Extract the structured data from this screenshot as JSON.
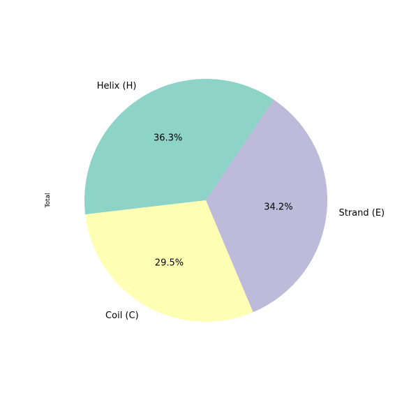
{
  "chart_data": {
    "type": "pie",
    "ylabel": "Total",
    "slices": [
      {
        "label": "Helix (H)",
        "value": 36.3,
        "pct_label": "36.3%",
        "color": "#8dd3c7"
      },
      {
        "label": "Coil (C)",
        "value": 29.5,
        "pct_label": "29.5%",
        "color": "#ffffb3"
      },
      {
        "label": "Strand (E)",
        "value": 34.2,
        "pct_label": "34.2%",
        "color": "#bebada"
      }
    ],
    "start_angle_deg": 56,
    "direction": "counterclockwise"
  }
}
